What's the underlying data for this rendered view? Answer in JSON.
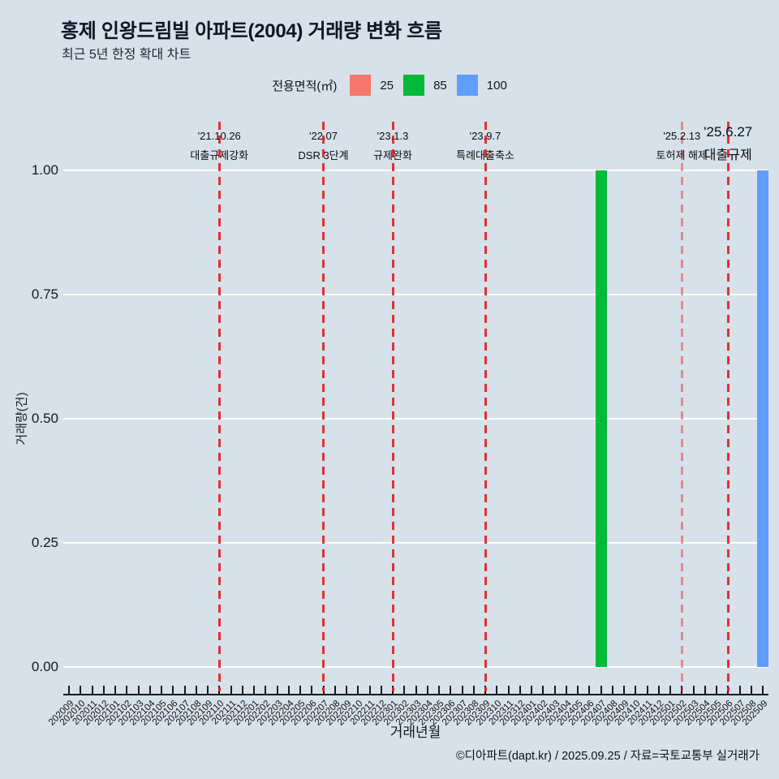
{
  "header": {
    "title": "홍제 인왕드림빌 아파트(2004) 거래량 변화 흐름",
    "subtitle": "최근 5년 한정 확대 차트"
  },
  "legend": {
    "title": "전용면적(㎡)",
    "items": [
      {
        "label": "25",
        "color": "#F8766D"
      },
      {
        "label": "85",
        "color": "#00BA38"
      },
      {
        "label": "100",
        "color": "#619CFF"
      }
    ]
  },
  "chart_data": {
    "type": "bar",
    "title": "홍제 인왕드림빌 아파트(2004) 거래량 변화 흐름",
    "subtitle": "최근 5년 한정 확대 차트",
    "xlabel": "거래년월",
    "ylabel": "거래량(건)",
    "ylim": [
      0,
      1
    ],
    "yticks": [
      "1.00",
      "0.75",
      "0.50",
      "0.25",
      "0.00"
    ],
    "grid": "horizontal-white",
    "legend_position": "top",
    "categories": [
      "202009",
      "202010",
      "202011",
      "202012",
      "202101",
      "202102",
      "202103",
      "202104",
      "202105",
      "202106",
      "202107",
      "202108",
      "202109",
      "202110",
      "202111",
      "202112",
      "202201",
      "202202",
      "202203",
      "202204",
      "202205",
      "202206",
      "202207",
      "202208",
      "202209",
      "202210",
      "202211",
      "202212",
      "202301",
      "202302",
      "202303",
      "202304",
      "202305",
      "202306",
      "202307",
      "202308",
      "202309",
      "202310",
      "202311",
      "202312",
      "202401",
      "202402",
      "202403",
      "202404",
      "202405",
      "202406",
      "202407",
      "202408",
      "202409",
      "202410",
      "202411",
      "202412",
      "202501",
      "202502",
      "202503",
      "202504",
      "202505",
      "202506",
      "202507",
      "202508",
      "202509"
    ],
    "series": [
      {
        "name": "25",
        "color": "#F8766D",
        "data": {}
      },
      {
        "name": "85",
        "color": "#00BA38",
        "data": {
          "202407": 1
        }
      },
      {
        "name": "100",
        "color": "#619CFF",
        "data": {
          "202509": 1
        }
      }
    ],
    "annotation_line_color": "#E02421",
    "annotations": [
      {
        "date": "'21.10.26",
        "label": "대출규제강화",
        "month": "202110",
        "emphasis": false,
        "faded": false
      },
      {
        "date": "'22.07",
        "label": "DSR 3단계",
        "month": "202207",
        "emphasis": false,
        "faded": false
      },
      {
        "date": "'23.1.3",
        "label": "규제완화",
        "month": "202301",
        "emphasis": false,
        "faded": false
      },
      {
        "date": "'23.9.7",
        "label": "특례대출축소",
        "month": "202309",
        "emphasis": false,
        "faded": false
      },
      {
        "date": "'25.2.13",
        "label": "토허제 해제",
        "month": "202502",
        "emphasis": false,
        "faded": true
      },
      {
        "date": "'25.6.27",
        "label": "대출규제",
        "month": "202506",
        "emphasis": true,
        "faded": false
      }
    ]
  },
  "footer": {
    "credit": "©디아파트(dapt.kr) / 2025.09.25 / 자료=국토교통부 실거래가"
  }
}
